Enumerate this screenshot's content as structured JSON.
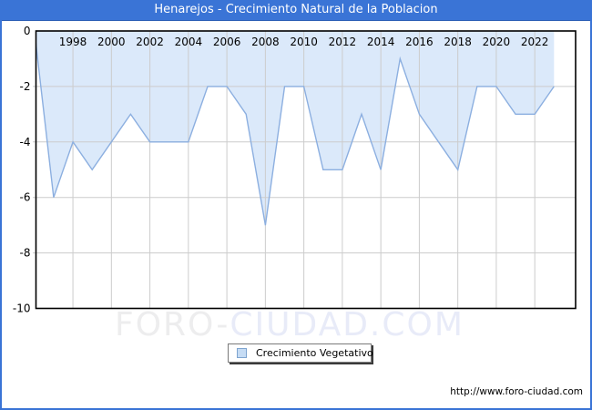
{
  "title": "Henarejos - Crecimiento Natural de la Poblacion",
  "legend": {
    "label": "Crecimiento Vegetativo"
  },
  "watermark": {
    "part1": "FORO-",
    "part2": "CIUDAD.COM"
  },
  "footer": {
    "url": "http://www.foro-ciudad.com"
  },
  "colors": {
    "accent_blue": "#3a74d6",
    "area_fill": "#dbe9fa",
    "area_line": "#8cafe0",
    "grid": "#cccccc",
    "plot_border": "#000000",
    "legend_swatch_fill": "#c6dcf4",
    "legend_swatch_border": "#7ea4cf"
  },
  "chart_data": {
    "type": "area",
    "title": "Henarejos - Crecimiento Natural de la Poblacion",
    "series_name": "Crecimiento Vegetativo",
    "x": [
      1996,
      1997,
      1998,
      1999,
      2000,
      2001,
      2002,
      2003,
      2004,
      2005,
      2006,
      2007,
      2008,
      2009,
      2010,
      2011,
      2012,
      2013,
      2014,
      2015,
      2016,
      2017,
      2018,
      2019,
      2020,
      2021,
      2022,
      2023
    ],
    "values": [
      0,
      -6,
      -4,
      -5,
      -4,
      -3,
      -4,
      -4,
      -4,
      -2,
      -2,
      -3,
      -7,
      -2,
      -2,
      -5,
      -5,
      -3,
      -5,
      -1,
      -3,
      -4,
      -5,
      -2,
      -2,
      -3,
      -3,
      -2
    ],
    "xlabel": "",
    "ylabel": "",
    "ylim": [
      -10,
      0
    ],
    "x_tick_labels": [
      "1998",
      "2000",
      "2002",
      "2004",
      "2006",
      "2008",
      "2010",
      "2012",
      "2014",
      "2016",
      "2018",
      "2020",
      "2022"
    ],
    "y_tick_labels": [
      "0",
      "-2",
      "-4",
      "-6",
      "-8",
      "-10"
    ],
    "y_gridlines": [
      -2,
      -4,
      -6,
      -8
    ],
    "grid": true,
    "legend_position": "bottom-center",
    "fill_to": 0
  }
}
